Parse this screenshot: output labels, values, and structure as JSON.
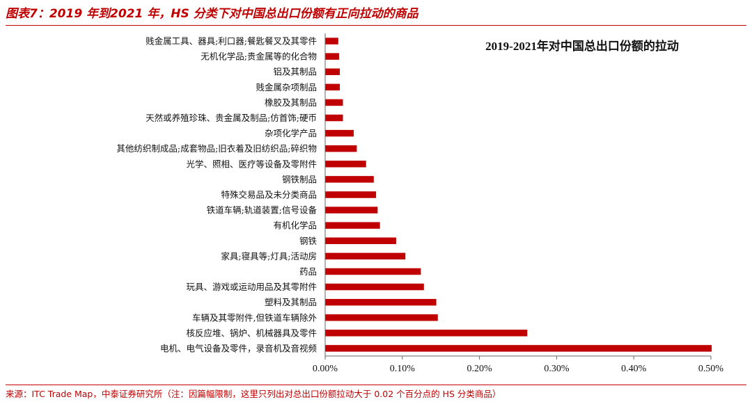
{
  "figure": {
    "header": "图表7：2019 年到2021 年，HS 分类下对中国总出口份额有正向拉动的商品",
    "source": "来源：ITC Trade Map，中泰证券研究所（注：因篇幅限制，这里只列出对总出口份额拉动大于 0.02 个百分点的 HS 分类商品）"
  },
  "colors": {
    "bar": "#c00000",
    "header": "#c00000",
    "axis": "#666666"
  },
  "chart_data": {
    "type": "bar",
    "orientation": "horizontal",
    "title": "2019-2021年对中国总出口份额的拉动",
    "xlabel": "",
    "ylabel": "",
    "xlim": [
      0,
      0.5
    ],
    "x_ticks": [
      0,
      0.1,
      0.2,
      0.3,
      0.4,
      0.5
    ],
    "x_tick_labels": [
      "0.00%",
      "0.10%",
      "0.20%",
      "0.30%",
      "0.40%",
      "0.50%"
    ],
    "grid": false,
    "legend": "none",
    "categories": [
      "贱金属工具、器具;利口器;餐匙餐叉及其零件",
      "无机化学品;贵金属等的化合物",
      "铝及其制品",
      "贱金属杂项制品",
      "橡胶及其制品",
      "天然或养殖珍珠、贵金属及制品;仿首饰;硬币",
      "杂项化学产品",
      "其他纺织制成品;成套物品;旧衣着及旧纺织品;碎织物",
      "光学、照相、医疗等设备及零附件",
      "钢铁制品",
      "特殊交易品及未分类商品",
      "铁道车辆;轨道装置;信号设备",
      "有机化学品",
      "钢铁",
      "家具;寝具等;灯具;活动房",
      "药品",
      "玩具、游戏或运动用品及其零附件",
      "塑料及其制品",
      "车辆及其零附件,但铁道车辆除外",
      "核反应堆、锅炉、机械器具及零件",
      "电机、电气设备及零件，录音机及音视频"
    ],
    "values": [
      0.017,
      0.018,
      0.019,
      0.019,
      0.023,
      0.023,
      0.037,
      0.041,
      0.053,
      0.063,
      0.066,
      0.068,
      0.071,
      0.092,
      0.104,
      0.124,
      0.128,
      0.144,
      0.146,
      0.262,
      0.501
    ],
    "unit": "%"
  }
}
